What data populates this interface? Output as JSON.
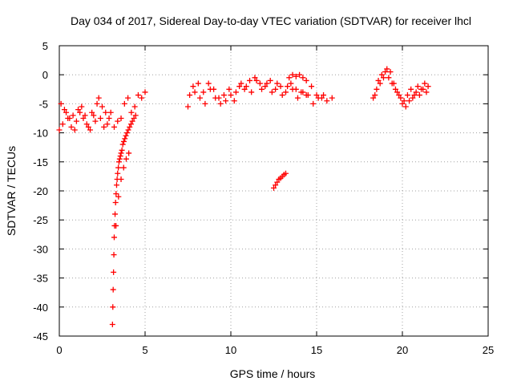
{
  "chart_data": {
    "type": "scatter",
    "title": "Day 034 of 2017, Sidereal Day-to-day VTEC variation (SDTVAR) for receiver lhcl",
    "xlabel": "GPS time / hours",
    "ylabel": "SDTVAR / TECUs",
    "xlim": [
      0,
      25
    ],
    "ylim": [
      -45,
      5
    ],
    "xticks": [
      0,
      5,
      10,
      15,
      20,
      25
    ],
    "yticks": [
      5,
      0,
      -5,
      -10,
      -15,
      -20,
      -25,
      -30,
      -35,
      -40,
      -45
    ],
    "grid": true,
    "marker": "+",
    "series": [
      {
        "name": "SDTVAR",
        "color": "#ff0000",
        "x": [
          0.0,
          0.2,
          0.4,
          0.6,
          0.8,
          1.0,
          1.2,
          1.4,
          1.6,
          1.8,
          2.0,
          2.2,
          2.4,
          2.6,
          2.8,
          3.0,
          0.1,
          0.3,
          0.5,
          0.7,
          0.9,
          1.1,
          1.3,
          1.5,
          1.7,
          1.9,
          2.1,
          2.3,
          2.5,
          2.7,
          2.9,
          3.2,
          3.4,
          3.6,
          3.8,
          4.0,
          4.2,
          4.4,
          4.6,
          4.8,
          5.0,
          3.1,
          3.12,
          3.14,
          3.16,
          3.18,
          3.2,
          3.22,
          3.25,
          3.28,
          3.31,
          3.34,
          3.37,
          3.4,
          3.44,
          3.48,
          3.52,
          3.56,
          3.6,
          3.65,
          3.7,
          3.76,
          3.82,
          3.88,
          3.95,
          4.02,
          4.1,
          4.18,
          4.26,
          4.35,
          4.45,
          3.3,
          3.45,
          3.6,
          3.75,
          3.9,
          4.05,
          7.5,
          7.8,
          8.1,
          8.4,
          8.7,
          9.0,
          9.3,
          9.6,
          9.9,
          10.2,
          10.5,
          10.8,
          11.1,
          11.4,
          11.7,
          12.0,
          12.3,
          12.6,
          12.9,
          13.2,
          13.5,
          13.8,
          14.1,
          14.4,
          14.7,
          15.0,
          15.3,
          15.6,
          15.9,
          7.6,
          7.9,
          8.2,
          8.5,
          8.8,
          9.1,
          9.4,
          9.7,
          10.0,
          10.3,
          10.6,
          10.9,
          11.2,
          11.5,
          11.8,
          12.1,
          12.4,
          12.7,
          13.0,
          13.3,
          13.6,
          13.9,
          14.2,
          14.5,
          14.8,
          15.1,
          15.4,
          12.5,
          12.6,
          12.7,
          12.8,
          12.9,
          13.0,
          13.1,
          13.2,
          13.4,
          13.6,
          13.8,
          14.0,
          14.2,
          14.4,
          18.3,
          18.5,
          18.7,
          18.9,
          19.1,
          19.3,
          19.5,
          19.7,
          19.9,
          20.1,
          20.3,
          20.5,
          20.7,
          20.9,
          21.1,
          21.3,
          21.5,
          18.4,
          18.6,
          18.8,
          19.0,
          19.2,
          19.4,
          19.6,
          19.8,
          20.0,
          20.2,
          20.4,
          20.6,
          20.8,
          21.0,
          21.2,
          21.4
        ],
        "y": [
          -9.5,
          -8.5,
          -6.5,
          -7.5,
          -7.0,
          -8.0,
          -6.5,
          -7.5,
          -8.5,
          -9.5,
          -7.0,
          -5.0,
          -7.5,
          -9.0,
          -8.5,
          -6.5,
          -5.0,
          -6.0,
          -7.5,
          -9.0,
          -9.5,
          -6.0,
          -5.5,
          -7.0,
          -9.0,
          -6.5,
          -8.0,
          -4.0,
          -5.5,
          -6.5,
          -7.5,
          -9.0,
          -8.0,
          -7.5,
          -5.0,
          -4.0,
          -6.5,
          -5.5,
          -3.5,
          -4.0,
          -3.0,
          -43.0,
          -40.0,
          -37.0,
          -34.0,
          -31.0,
          -28.0,
          -26.0,
          -24.0,
          -22.0,
          -20.5,
          -19.0,
          -18.0,
          -17.0,
          -16.0,
          -15.0,
          -14.5,
          -14.0,
          -13.5,
          -13.0,
          -12.0,
          -11.5,
          -11.0,
          -10.5,
          -10.0,
          -9.5,
          -9.0,
          -8.5,
          -8.0,
          -7.5,
          -7.0,
          -26.0,
          -21.0,
          -18.0,
          -16.0,
          -14.5,
          -13.5,
          -5.5,
          -2.0,
          -1.5,
          -3.0,
          -1.5,
          -2.5,
          -4.0,
          -3.5,
          -2.5,
          -4.5,
          -2.0,
          -2.5,
          -1.0,
          -0.5,
          -1.5,
          -2.0,
          -1.0,
          -2.5,
          -2.0,
          -3.0,
          -1.5,
          -2.5,
          -3.0,
          -3.5,
          -2.0,
          -3.5,
          -4.0,
          -4.5,
          -4.0,
          -3.5,
          -3.0,
          -4.0,
          -5.0,
          -2.5,
          -4.0,
          -5.0,
          -4.5,
          -3.5,
          -3.0,
          -1.5,
          -2.0,
          -3.0,
          -1.0,
          -2.5,
          -1.5,
          -3.0,
          -1.5,
          -3.5,
          -2.0,
          -2.5,
          -4.0,
          -3.0,
          -3.5,
          -5.0,
          -4.0,
          -3.5,
          -19.5,
          -19.0,
          -18.5,
          -18.0,
          -17.8,
          -17.5,
          -17.2,
          -17.0,
          -0.5,
          0.0,
          -0.3,
          0.0,
          -0.5,
          -1.0,
          -4.0,
          -2.5,
          -1.5,
          -0.5,
          1.0,
          0.5,
          -1.5,
          -3.0,
          -4.0,
          -4.5,
          -3.5,
          -2.5,
          -3.5,
          -2.0,
          -2.5,
          -1.5,
          -2.0,
          -3.5,
          -1.0,
          0.0,
          0.5,
          -0.5,
          -1.5,
          -2.5,
          -3.5,
          -5.0,
          -5.5,
          -4.5,
          -4.0,
          -3.0,
          -3.5,
          -2.5,
          -3.0
        ]
      }
    ]
  }
}
